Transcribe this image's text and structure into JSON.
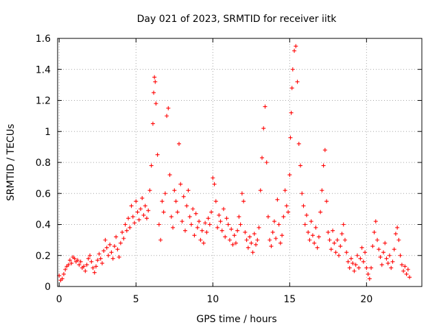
{
  "chart_data": {
    "type": "scatter",
    "title": "Day 021 of 2023, SRMTID for receiver iitk",
    "xlabel": "GPS time / hours",
    "ylabel": "SRMTID / TECUs",
    "xlim": [
      -0.1,
      23.6
    ],
    "ylim": [
      0,
      1.6
    ],
    "xticks": [
      0,
      5,
      10,
      15,
      20
    ],
    "yticks": [
      0,
      0.2,
      0.4,
      0.6,
      0.8,
      1,
      1.2,
      1.4,
      1.6
    ],
    "xtick_labels": [
      "0",
      "5",
      "10",
      "15",
      "20"
    ],
    "ytick_labels": [
      "0",
      "0.2",
      "0.4",
      "0.6",
      "0.8",
      "1",
      "1.2",
      "1.4",
      "1.6"
    ],
    "grid": true,
    "marker": "+",
    "series": [
      {
        "name": "SRMTID",
        "color": "#ff0000",
        "x": [
          0.0,
          0.1,
          0.2,
          0.3,
          0.4,
          0.5,
          0.6,
          0.7,
          0.8,
          0.9,
          1.0,
          1.1,
          1.2,
          1.3,
          1.4,
          1.5,
          1.6,
          1.7,
          1.8,
          1.9,
          2.0,
          2.1,
          2.2,
          2.3,
          2.4,
          2.5,
          2.6,
          2.7,
          2.8,
          2.9,
          3.0,
          3.1,
          3.2,
          3.3,
          3.4,
          3.5,
          3.6,
          3.7,
          3.8,
          3.9,
          4.0,
          4.1,
          4.2,
          4.3,
          4.4,
          4.5,
          4.6,
          4.7,
          4.8,
          4.9,
          5.0,
          5.1,
          5.2,
          5.3,
          5.4,
          5.5,
          5.6,
          5.7,
          5.8,
          5.9,
          6.0,
          6.1,
          6.15,
          6.2,
          6.25,
          6.3,
          6.4,
          6.5,
          6.6,
          6.7,
          6.8,
          6.9,
          7.0,
          7.1,
          7.2,
          7.3,
          7.4,
          7.5,
          7.6,
          7.7,
          7.8,
          7.9,
          8.0,
          8.1,
          8.2,
          8.3,
          8.4,
          8.5,
          8.6,
          8.7,
          8.8,
          8.9,
          9.0,
          9.1,
          9.2,
          9.3,
          9.4,
          9.5,
          9.6,
          9.7,
          9.8,
          9.9,
          10.0,
          10.1,
          10.2,
          10.3,
          10.4,
          10.5,
          10.6,
          10.7,
          10.8,
          10.9,
          11.0,
          11.1,
          11.2,
          11.3,
          11.4,
          11.5,
          11.6,
          11.7,
          11.8,
          11.9,
          12.0,
          12.1,
          12.2,
          12.3,
          12.4,
          12.5,
          12.6,
          12.7,
          12.8,
          12.9,
          13.0,
          13.1,
          13.2,
          13.3,
          13.4,
          13.5,
          13.6,
          13.7,
          13.8,
          13.9,
          14.0,
          14.1,
          14.2,
          14.3,
          14.4,
          14.5,
          14.6,
          14.7,
          14.8,
          14.9,
          15.0,
          15.05,
          15.1,
          15.15,
          15.2,
          15.3,
          15.4,
          15.5,
          15.6,
          15.7,
          15.8,
          15.9,
          16.0,
          16.1,
          16.2,
          16.3,
          16.4,
          16.5,
          16.6,
          16.7,
          16.8,
          16.9,
          17.0,
          17.1,
          17.2,
          17.3,
          17.4,
          17.5,
          17.6,
          17.7,
          17.8,
          17.9,
          18.0,
          18.1,
          18.2,
          18.3,
          18.4,
          18.5,
          18.6,
          18.7,
          18.8,
          18.9,
          19.0,
          19.1,
          19.2,
          19.3,
          19.4,
          19.5,
          19.6,
          19.7,
          19.8,
          19.9,
          20.0,
          20.1,
          20.2,
          20.3,
          20.4,
          20.5,
          20.6,
          20.7,
          20.8,
          20.9,
          21.0,
          21.1,
          21.2,
          21.3,
          21.4,
          21.5,
          21.6,
          21.7,
          21.8,
          21.9,
          22.0,
          22.1,
          22.2,
          22.3,
          22.4,
          22.5,
          22.6,
          22.7,
          22.8
        ],
        "y": [
          0.07,
          0.04,
          0.05,
          0.08,
          0.11,
          0.13,
          0.14,
          0.17,
          0.15,
          0.19,
          0.18,
          0.16,
          0.17,
          0.14,
          0.16,
          0.12,
          0.13,
          0.1,
          0.14,
          0.18,
          0.2,
          0.16,
          0.12,
          0.09,
          0.13,
          0.17,
          0.21,
          0.18,
          0.15,
          0.23,
          0.3,
          0.25,
          0.2,
          0.27,
          0.22,
          0.18,
          0.26,
          0.32,
          0.24,
          0.19,
          0.28,
          0.35,
          0.31,
          0.4,
          0.36,
          0.44,
          0.38,
          0.52,
          0.45,
          0.41,
          0.55,
          0.48,
          0.43,
          0.5,
          0.57,
          0.46,
          0.52,
          0.44,
          0.49,
          0.62,
          0.78,
          1.05,
          1.25,
          1.35,
          1.32,
          1.18,
          0.85,
          0.4,
          0.3,
          0.55,
          0.48,
          0.6,
          1.1,
          1.15,
          0.72,
          0.45,
          0.38,
          0.62,
          0.55,
          0.48,
          0.92,
          0.66,
          0.42,
          0.58,
          0.36,
          0.52,
          0.62,
          0.45,
          0.4,
          0.5,
          0.33,
          0.47,
          0.38,
          0.42,
          0.3,
          0.36,
          0.28,
          0.41,
          0.35,
          0.44,
          0.4,
          0.48,
          0.7,
          0.66,
          0.55,
          0.38,
          0.46,
          0.42,
          0.36,
          0.5,
          0.32,
          0.44,
          0.4,
          0.3,
          0.37,
          0.27,
          0.33,
          0.28,
          0.36,
          0.45,
          0.4,
          0.6,
          0.55,
          0.35,
          0.3,
          0.25,
          0.32,
          0.28,
          0.22,
          0.34,
          0.27,
          0.3,
          0.38,
          0.62,
          0.83,
          1.02,
          1.16,
          0.8,
          0.45,
          0.3,
          0.26,
          0.35,
          0.42,
          0.31,
          0.56,
          0.4,
          0.28,
          0.33,
          0.45,
          0.62,
          0.52,
          0.48,
          0.72,
          0.96,
          1.12,
          1.28,
          1.4,
          1.52,
          1.55,
          1.32,
          0.92,
          0.78,
          0.6,
          0.52,
          0.4,
          0.46,
          0.35,
          0.3,
          0.42,
          0.33,
          0.28,
          0.38,
          0.25,
          0.32,
          0.48,
          0.62,
          0.78,
          0.88,
          0.55,
          0.35,
          0.3,
          0.24,
          0.36,
          0.28,
          0.22,
          0.3,
          0.2,
          0.26,
          0.34,
          0.4,
          0.3,
          0.22,
          0.16,
          0.12,
          0.18,
          0.15,
          0.1,
          0.14,
          0.2,
          0.12,
          0.18,
          0.25,
          0.16,
          0.22,
          0.12,
          0.08,
          0.05,
          0.12,
          0.26,
          0.35,
          0.42,
          0.3,
          0.24,
          0.19,
          0.14,
          0.22,
          0.28,
          0.18,
          0.15,
          0.2,
          0.12,
          0.16,
          0.24,
          0.34,
          0.38,
          0.3,
          0.2,
          0.14,
          0.1,
          0.13,
          0.08,
          0.11,
          0.06
        ]
      }
    ]
  }
}
